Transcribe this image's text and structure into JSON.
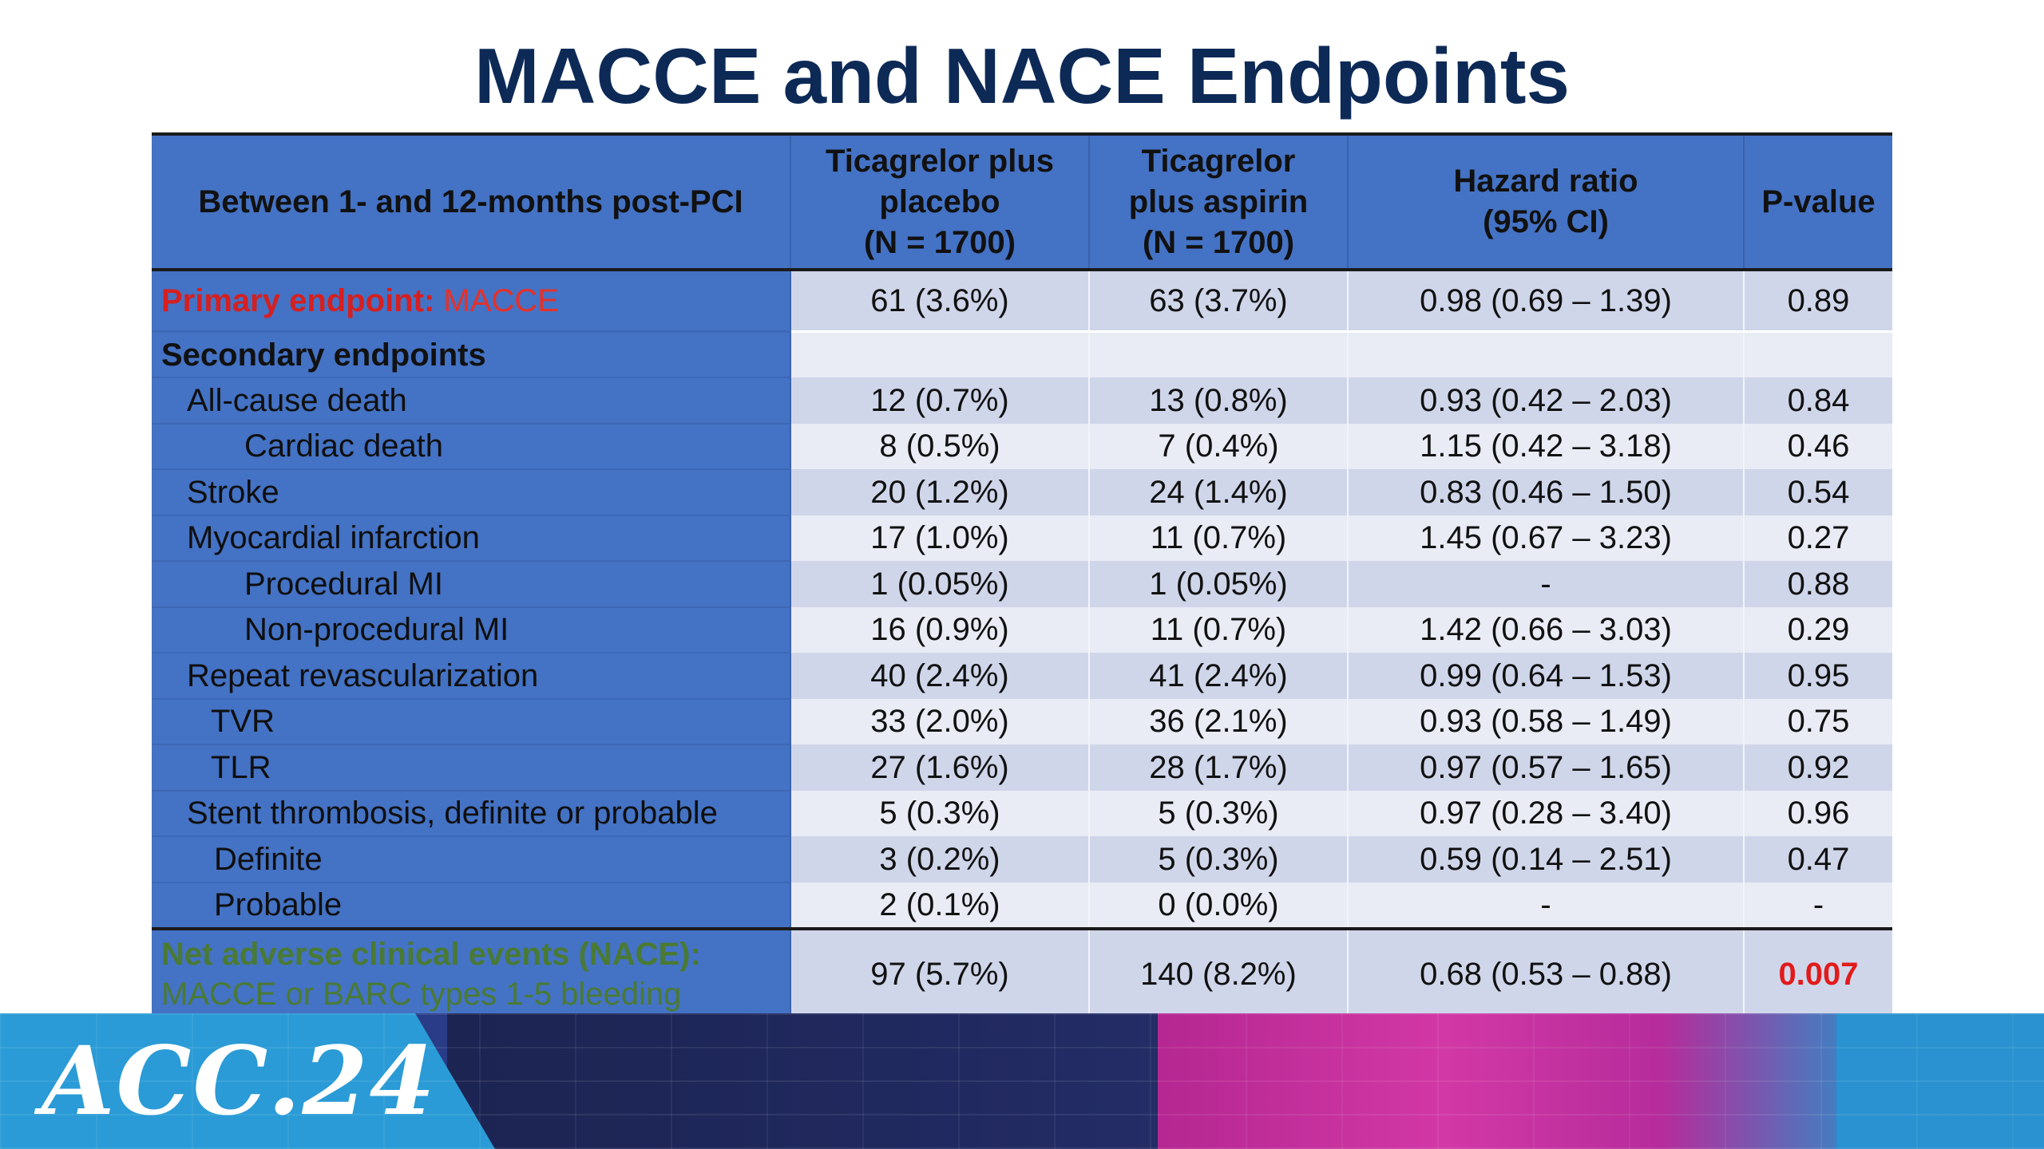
{
  "title": "MACCE and NACE Endpoints",
  "table": {
    "headers": [
      [
        "Between 1- and 12-months post-PCI"
      ],
      [
        "Ticagrelor plus",
        "placebo",
        "(N = 1700)"
      ],
      [
        "Ticagrelor",
        "plus aspirin",
        "(N = 1700)"
      ],
      [
        "Hazard ratio",
        "(95% CI)"
      ],
      [
        "P-value"
      ]
    ],
    "primary": {
      "label_key": "Primary endpoint:",
      "label_val": " MACCE",
      "placebo": "61 (3.6%)",
      "aspirin": "63 (3.7%)",
      "hr": "0.98 (0.69 – 1.39)",
      "p": "0.89"
    },
    "section_label": "Secondary endpoints",
    "rows": [
      {
        "label": "All-cause death",
        "placebo": "12 (0.7%)",
        "aspirin": "13 (0.8%)",
        "hr": "0.93 (0.42 – 2.03)",
        "p": "0.84"
      },
      {
        "label": "Cardiac death",
        "placebo": "8 (0.5%)",
        "aspirin": "7 (0.4%)",
        "hr": "1.15 (0.42 – 3.18)",
        "p": "0.46"
      },
      {
        "label": "Stroke",
        "placebo": "20 (1.2%)",
        "aspirin": "24 (1.4%)",
        "hr": "0.83 (0.46 – 1.50)",
        "p": "0.54"
      },
      {
        "label": "Myocardial infarction",
        "placebo": "17 (1.0%)",
        "aspirin": "11 (0.7%)",
        "hr": "1.45 (0.67 – 3.23)",
        "p": "0.27"
      },
      {
        "label": "Procedural MI",
        "placebo": "1 (0.05%)",
        "aspirin": "1 (0.05%)",
        "hr": "-",
        "p": "0.88"
      },
      {
        "label": "Non-procedural MI",
        "placebo": "16 (0.9%)",
        "aspirin": "11 (0.7%)",
        "hr": "1.42 (0.66 – 3.03)",
        "p": "0.29"
      },
      {
        "label": "Repeat revascularization",
        "placebo": "40 (2.4%)",
        "aspirin": "41 (2.4%)",
        "hr": "0.99 (0.64 – 1.53)",
        "p": "0.95"
      },
      {
        "label": "TVR",
        "placebo": "33 (2.0%)",
        "aspirin": "36 (2.1%)",
        "hr": "0.93 (0.58 – 1.49)",
        "p": "0.75"
      },
      {
        "label": "TLR",
        "placebo": "27 (1.6%)",
        "aspirin": "28 (1.7%)",
        "hr": "0.97 (0.57 – 1.65)",
        "p": "0.92"
      },
      {
        "label": "Stent thrombosis, definite or probable",
        "placebo": "5 (0.3%)",
        "aspirin": "5 (0.3%)",
        "hr": "0.97 (0.28 – 3.40)",
        "p": "0.96"
      },
      {
        "label": "Definite",
        "placebo": "3 (0.2%)",
        "aspirin": "5 (0.3%)",
        "hr": "0.59 (0.14 – 2.51)",
        "p": "0.47"
      },
      {
        "label": "Probable",
        "placebo": "2 (0.1%)",
        "aspirin": "0 (0.0%)",
        "hr": "-",
        "p": "-"
      }
    ],
    "nace": {
      "label_title": "Net adverse clinical events (NACE):",
      "label_sub": "MACCE or BARC types 1-5 bleeding",
      "placebo": "97 (5.7%)",
      "aspirin": "140 (8.2%)",
      "hr": "0.68 (0.53 – 0.88)",
      "p": "0.007"
    }
  },
  "footer": {
    "logo_text": "ACC.24"
  },
  "colors": {
    "title": "#0d2a57",
    "header_bg": "#4472c4",
    "row_dark": "#cfd6ea",
    "row_light": "#e9ebf5",
    "primary_red": "#d61f1f",
    "nace_green": "#4a7a33",
    "significant_red": "#e11b1b"
  }
}
